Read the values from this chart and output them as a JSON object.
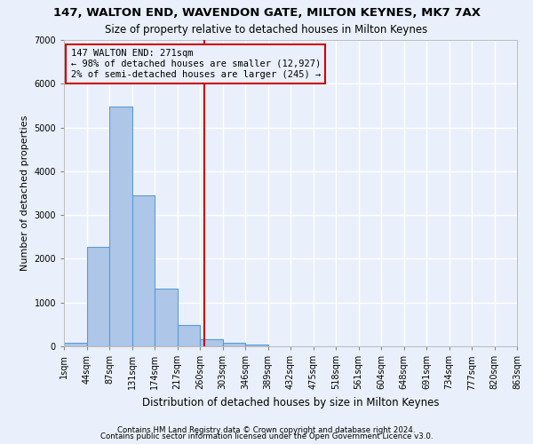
{
  "title": "147, WALTON END, WAVENDON GATE, MILTON KEYNES, MK7 7AX",
  "subtitle": "Size of property relative to detached houses in Milton Keynes",
  "xlabel": "Distribution of detached houses by size in Milton Keynes",
  "ylabel": "Number of detached properties",
  "bar_values": [
    80,
    2280,
    5470,
    3440,
    1320,
    480,
    160,
    90,
    45,
    0,
    0,
    0,
    0,
    0,
    0,
    0,
    0,
    0,
    0,
    0
  ],
  "bar_color": "#aec6e8",
  "bar_edge_color": "#5b9bd5",
  "tick_labels": [
    "1sqm",
    "44sqm",
    "87sqm",
    "131sqm",
    "174sqm",
    "217sqm",
    "260sqm",
    "303sqm",
    "346sqm",
    "389sqm",
    "432sqm",
    "475sqm",
    "518sqm",
    "561sqm",
    "604sqm",
    "648sqm",
    "691sqm",
    "734sqm",
    "777sqm",
    "820sqm",
    "863sqm"
  ],
  "vline_x": 6.18,
  "vline_color": "#cc0000",
  "annotation_text": "147 WALTON END: 271sqm\n← 98% of detached houses are smaller (12,927)\n2% of semi-detached houses are larger (245) →",
  "annotation_box_color": "#cc0000",
  "ylim": [
    0,
    7000
  ],
  "yticks": [
    0,
    1000,
    2000,
    3000,
    4000,
    5000,
    6000,
    7000
  ],
  "footnote1": "Contains HM Land Registry data © Crown copyright and database right 2024.",
  "footnote2": "Contains public sector information licensed under the Open Government Licence v3.0.",
  "bg_color": "#eaf0fb",
  "grid_color": "#ffffff",
  "figsize": [
    6.0,
    5.0
  ],
  "dpi": 100
}
